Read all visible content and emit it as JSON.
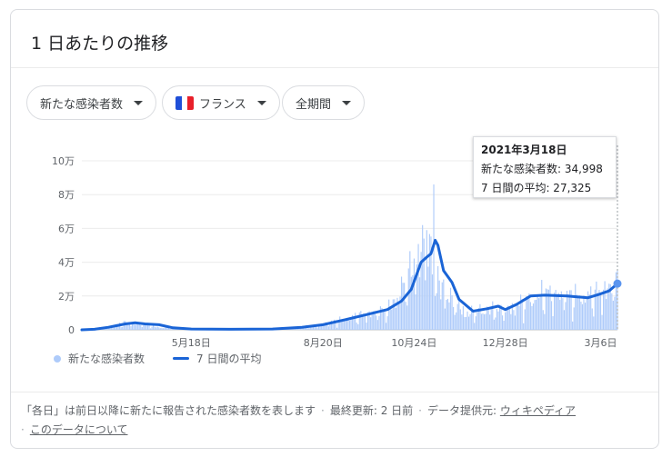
{
  "title": "1 日あたりの推移",
  "filters": [
    {
      "label": "新たな感染者数"
    },
    {
      "label": "フランス",
      "flag_colors": [
        "#1f4fd8",
        "#ffffff",
        "#e8202a"
      ]
    },
    {
      "label": "全期間"
    }
  ],
  "tooltip": {
    "date": "2021年3月18日",
    "cases_line": "新たな感染者数: 34,998",
    "avg_line": "7 日間の平均: 27,325"
  },
  "footer": {
    "note": "「各日」は前日以降に新たに報告された感染者数を表します",
    "updated": "最終更新: 2 日前",
    "source_label": "データ提供元:",
    "source_link": "ウィキペディア",
    "about_link": "このデータについて",
    "separator": "·"
  },
  "colors": {
    "bars": "#aecbfa",
    "line": "#1a64d6",
    "point": "#5b95ef"
  },
  "chart_data": {
    "type": "bar",
    "title": "",
    "xlabel": "",
    "ylabel": "",
    "ylim": [
      0,
      100000
    ],
    "y_ticks": [
      {
        "value": 0,
        "label": "0"
      },
      {
        "value": 20000,
        "label": "2万"
      },
      {
        "value": 40000,
        "label": "4万"
      },
      {
        "value": 60000,
        "label": "6万"
      },
      {
        "value": 80000,
        "label": "8万"
      },
      {
        "value": 100000,
        "label": "10万"
      }
    ],
    "x_range": [
      "2020-03-01",
      "2021-03-18"
    ],
    "x_ticks": [
      {
        "date": "2020-05-18",
        "label": "5月18日"
      },
      {
        "date": "2020-08-20",
        "label": "8月20日"
      },
      {
        "date": "2020-10-24",
        "label": "10月24日"
      },
      {
        "date": "2020-12-28",
        "label": "12月28日"
      },
      {
        "date": "2021-03-06",
        "label": "3月6日"
      }
    ],
    "grid": true,
    "legend_position": "bottom-left",
    "series": [
      {
        "name": "新たな感染者数",
        "kind": "bar",
        "anchors": [
          [
            "2020-03-01",
            100
          ],
          [
            "2020-03-20",
            1600
          ],
          [
            "2020-04-01",
            4500
          ],
          [
            "2020-04-10",
            4000
          ],
          [
            "2020-04-25",
            1500
          ],
          [
            "2020-05-10",
            700
          ],
          [
            "2020-06-01",
            500
          ],
          [
            "2020-06-20",
            400
          ],
          [
            "2020-07-15",
            700
          ],
          [
            "2020-08-01",
            1200
          ],
          [
            "2020-08-20",
            3500
          ],
          [
            "2020-09-05",
            7000
          ],
          [
            "2020-09-20",
            10000
          ],
          [
            "2020-10-05",
            12000
          ],
          [
            "2020-10-15",
            25000
          ],
          [
            "2020-10-25",
            42000
          ],
          [
            "2020-10-30",
            50000
          ],
          [
            "2020-11-03",
            50000
          ],
          [
            "2020-11-10",
            30000
          ],
          [
            "2020-11-20",
            18000
          ],
          [
            "2020-12-01",
            10000
          ],
          [
            "2020-12-15",
            13000
          ],
          [
            "2020-12-28",
            12000
          ],
          [
            "2021-01-10",
            17000
          ],
          [
            "2021-01-25",
            23000
          ],
          [
            "2021-02-10",
            21000
          ],
          [
            "2021-02-25",
            21000
          ],
          [
            "2021-03-10",
            25000
          ],
          [
            "2021-03-18",
            30000
          ]
        ]
      },
      {
        "name": "7 日間の平均",
        "kind": "line",
        "points": [
          [
            "2020-03-01",
            0
          ],
          [
            "2020-03-10",
            300
          ],
          [
            "2020-03-20",
            1500
          ],
          [
            "2020-04-01",
            3500
          ],
          [
            "2020-04-08",
            4200
          ],
          [
            "2020-04-15",
            3500
          ],
          [
            "2020-04-25",
            3000
          ],
          [
            "2020-05-05",
            1200
          ],
          [
            "2020-05-18",
            500
          ],
          [
            "2020-06-15",
            300
          ],
          [
            "2020-07-15",
            500
          ],
          [
            "2020-08-05",
            1500
          ],
          [
            "2020-08-20",
            3000
          ],
          [
            "2020-09-05",
            6000
          ],
          [
            "2020-09-20",
            9000
          ],
          [
            "2020-10-05",
            12000
          ],
          [
            "2020-10-15",
            17000
          ],
          [
            "2020-10-22",
            24000
          ],
          [
            "2020-10-29",
            40000
          ],
          [
            "2020-11-02",
            43000
          ],
          [
            "2020-11-05",
            45000
          ],
          [
            "2020-11-08",
            53000
          ],
          [
            "2020-11-10",
            50000
          ],
          [
            "2020-11-14",
            35000
          ],
          [
            "2020-11-20",
            28000
          ],
          [
            "2020-11-25",
            18000
          ],
          [
            "2020-12-05",
            11000
          ],
          [
            "2020-12-15",
            12500
          ],
          [
            "2020-12-23",
            14000
          ],
          [
            "2020-12-28",
            12000
          ],
          [
            "2021-01-05",
            15000
          ],
          [
            "2021-01-15",
            20000
          ],
          [
            "2021-01-25",
            20500
          ],
          [
            "2021-02-10",
            20000
          ],
          [
            "2021-02-25",
            19000
          ],
          [
            "2021-03-05",
            21000
          ],
          [
            "2021-03-12",
            23000
          ],
          [
            "2021-03-18",
            27325
          ]
        ]
      }
    ],
    "spikes": [
      {
        "date": "2020-11-07",
        "value": 86000
      },
      {
        "date": "2020-11-02",
        "value": 59000
      },
      {
        "date": "2020-10-31",
        "value": 54000
      },
      {
        "date": "2021-03-18",
        "value": 34998
      }
    ],
    "highlight": {
      "date": "2021-03-18",
      "cases": 34998,
      "avg": 27325
    }
  }
}
